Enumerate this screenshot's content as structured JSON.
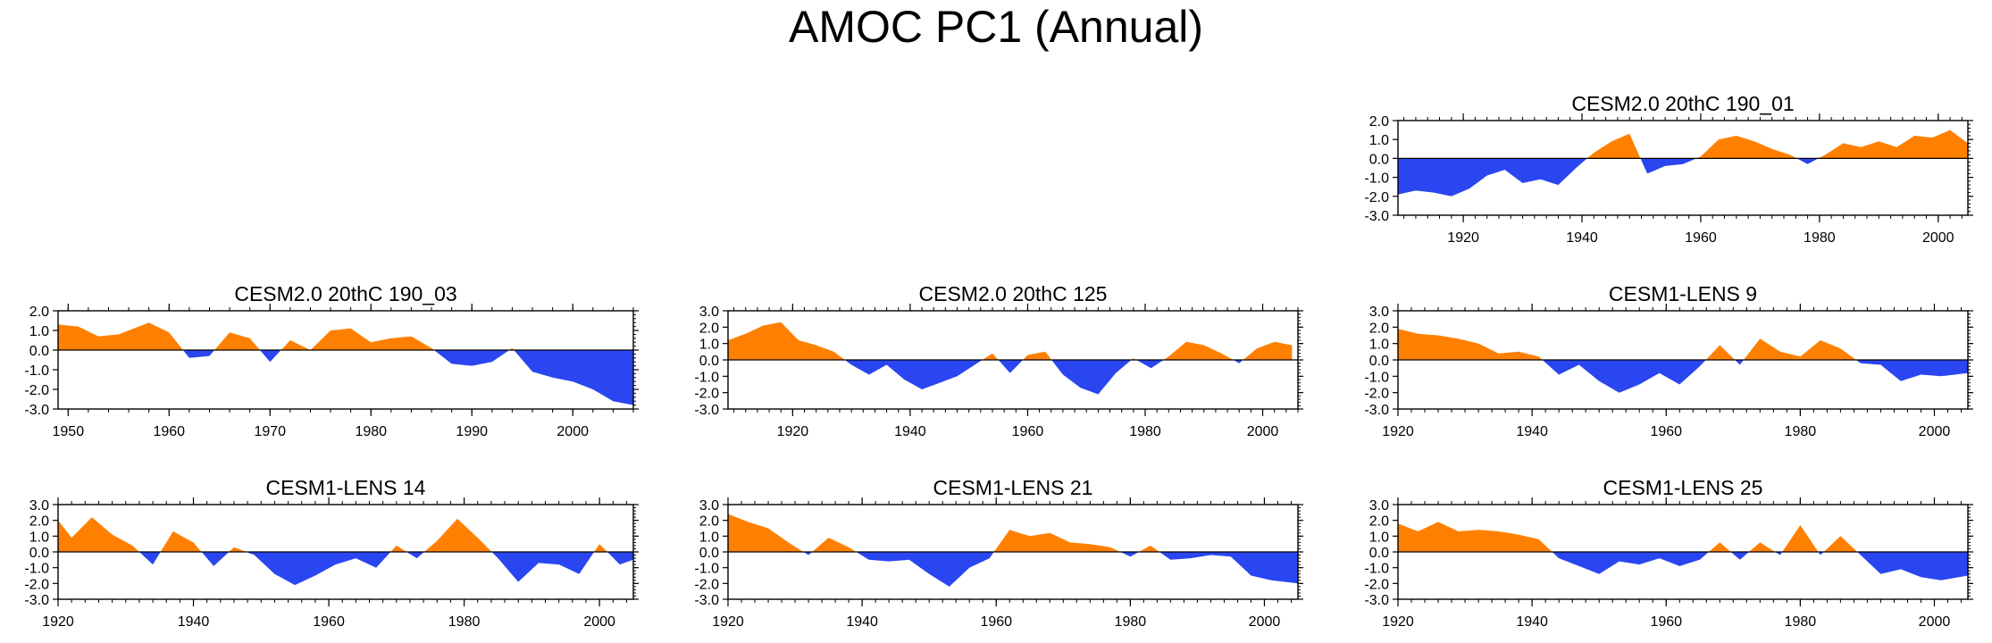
{
  "title": "AMOC PC1 (Annual)",
  "colors": {
    "positive": "#ff8000",
    "negative": "#2a46f0",
    "axis": "#000000"
  },
  "chart_data": [
    {
      "type": "area",
      "title": "CESM2.0 20thC 190_01",
      "x_range": [
        1909,
        2005
      ],
      "ylim": [
        -3,
        2
      ],
      "yticks": [
        2,
        1,
        0,
        -1,
        -2,
        -3
      ],
      "ytick_labels": [
        "2.0",
        "1.0",
        "0.0",
        "-1.0",
        "-2.0",
        "-3.0"
      ],
      "xticks": [
        1920,
        1940,
        1960,
        1980,
        2000
      ],
      "xlabel": "",
      "ylabel": "",
      "x": [
        1909,
        1912,
        1915,
        1918,
        1921,
        1924,
        1927,
        1930,
        1933,
        1936,
        1939,
        1942,
        1945,
        1948,
        1951,
        1954,
        1957,
        1960,
        1963,
        1966,
        1969,
        1972,
        1975,
        1978,
        1981,
        1984,
        1987,
        1990,
        1993,
        1996,
        1999,
        2002,
        2005
      ],
      "y": [
        -1.9,
        -1.7,
        -1.8,
        -2.0,
        -1.6,
        -0.9,
        -0.6,
        -1.3,
        -1.1,
        -1.4,
        -0.5,
        0.3,
        0.9,
        1.3,
        -0.8,
        -0.4,
        -0.3,
        0.1,
        1.0,
        1.2,
        0.9,
        0.5,
        0.2,
        -0.3,
        0.2,
        0.8,
        0.6,
        0.9,
        0.6,
        1.2,
        1.1,
        1.5,
        0.8
      ]
    },
    {
      "type": "area",
      "title": "CESM2.0 20thC 190_03",
      "x_range": [
        1949,
        2006
      ],
      "ylim": [
        -3,
        2
      ],
      "yticks": [
        2,
        1,
        0,
        -1,
        -2,
        -3
      ],
      "ytick_labels": [
        "2.0",
        "1.0",
        "0.0",
        "-1.0",
        "-2.0",
        "-3.0"
      ],
      "xticks": [
        1950,
        1960,
        1970,
        1980,
        1990,
        2000
      ],
      "xlabel": "",
      "ylabel": "",
      "x": [
        1949,
        1951,
        1953,
        1955,
        1957,
        1958,
        1960,
        1962,
        1964,
        1966,
        1968,
        1970,
        1972,
        1974,
        1976,
        1978,
        1980,
        1982,
        1984,
        1986,
        1988,
        1990,
        1992,
        1994,
        1996,
        1998,
        2000,
        2002,
        2004,
        2006
      ],
      "y": [
        1.3,
        1.2,
        0.7,
        0.8,
        1.2,
        1.4,
        0.9,
        -0.4,
        -0.3,
        0.9,
        0.6,
        -0.6,
        0.5,
        0.0,
        1.0,
        1.1,
        0.4,
        0.6,
        0.7,
        0.1,
        -0.7,
        -0.8,
        -0.6,
        0.1,
        -1.1,
        -1.4,
        -1.6,
        -2.0,
        -2.6,
        -2.8
      ]
    },
    {
      "type": "area",
      "title": "CESM2.0 20thC 125",
      "x_range": [
        1909,
        2006
      ],
      "ylim": [
        -3,
        3
      ],
      "yticks": [
        3,
        2,
        1,
        0,
        -1,
        -2,
        -3
      ],
      "ytick_labels": [
        "3.0",
        "2.0",
        "1.0",
        "0.0",
        "-1.0",
        "-2.0",
        "-3.0"
      ],
      "xticks": [
        1920,
        1940,
        1960,
        1980,
        2000
      ],
      "xlabel": "",
      "ylabel": "",
      "x": [
        1909,
        1912,
        1915,
        1918,
        1921,
        1924,
        1927,
        1930,
        1933,
        1936,
        1939,
        1942,
        1945,
        1948,
        1951,
        1954,
        1957,
        1960,
        1963,
        1966,
        1969,
        1972,
        1975,
        1978,
        1981,
        1984,
        1987,
        1990,
        1993,
        1996,
        1999,
        2002,
        2005
      ],
      "y": [
        1.2,
        1.6,
        2.1,
        2.3,
        1.2,
        0.9,
        0.5,
        -0.3,
        -0.9,
        -0.3,
        -1.2,
        -1.8,
        -1.4,
        -1.0,
        -0.3,
        0.4,
        -0.8,
        0.3,
        0.5,
        -0.9,
        -1.7,
        -2.1,
        -0.8,
        0.1,
        -0.5,
        0.2,
        1.1,
        0.9,
        0.4,
        -0.2,
        0.7,
        1.1,
        0.9
      ]
    },
    {
      "type": "area",
      "title": "CESM1-LENS 9",
      "x_range": [
        1920,
        2005
      ],
      "ylim": [
        -3,
        3
      ],
      "yticks": [
        3,
        2,
        1,
        0,
        -1,
        -2,
        -3
      ],
      "ytick_labels": [
        "3.0",
        "2.0",
        "1.0",
        "0.0",
        "-1.0",
        "-2.0",
        "-3.0"
      ],
      "xticks": [
        1920,
        1940,
        1960,
        1980,
        2000
      ],
      "xlabel": "",
      "ylabel": "",
      "x": [
        1920,
        1923,
        1926,
        1929,
        1932,
        1935,
        1938,
        1941,
        1944,
        1947,
        1950,
        1953,
        1956,
        1959,
        1962,
        1965,
        1968,
        1971,
        1974,
        1977,
        1980,
        1983,
        1986,
        1989,
        1992,
        1995,
        1998,
        2001,
        2005
      ],
      "y": [
        1.9,
        1.6,
        1.5,
        1.3,
        1.0,
        0.4,
        0.5,
        0.2,
        -0.9,
        -0.3,
        -1.3,
        -2.0,
        -1.5,
        -0.8,
        -1.5,
        -0.4,
        0.9,
        -0.3,
        1.3,
        0.5,
        0.2,
        1.2,
        0.7,
        -0.2,
        -0.3,
        -1.3,
        -0.9,
        -1.0,
        -0.8
      ]
    },
    {
      "type": "area",
      "title": "CESM1-LENS 14",
      "x_range": [
        1920,
        2005
      ],
      "ylim": [
        -3,
        3
      ],
      "yticks": [
        3,
        2,
        1,
        0,
        -1,
        -2,
        -3
      ],
      "ytick_labels": [
        "3.0",
        "2.0",
        "1.0",
        "0.0",
        "-1.0",
        "-2.0",
        "-3.0"
      ],
      "xticks": [
        1920,
        1940,
        1960,
        1980,
        2000
      ],
      "xlabel": "",
      "ylabel": "",
      "x": [
        1920,
        1922,
        1925,
        1928,
        1931,
        1934,
        1937,
        1940,
        1943,
        1946,
        1949,
        1952,
        1955,
        1958,
        1961,
        1964,
        1967,
        1970,
        1973,
        1976,
        1979,
        1982,
        1985,
        1988,
        1991,
        1994,
        1997,
        2000,
        2003,
        2005
      ],
      "y": [
        2.0,
        0.9,
        2.2,
        1.1,
        0.4,
        -0.8,
        1.3,
        0.6,
        -0.9,
        0.3,
        -0.2,
        -1.4,
        -2.1,
        -1.5,
        -0.8,
        -0.4,
        -1.0,
        0.4,
        -0.4,
        0.7,
        2.1,
        0.9,
        -0.4,
        -1.9,
        -0.7,
        -0.8,
        -1.4,
        0.5,
        -0.8,
        -0.5
      ]
    },
    {
      "type": "area",
      "title": "CESM1-LENS 21",
      "x_range": [
        1920,
        2005
      ],
      "ylim": [
        -3,
        3
      ],
      "yticks": [
        3,
        2,
        1,
        0,
        -1,
        -2,
        -3
      ],
      "ytick_labels": [
        "3.0",
        "2.0",
        "1.0",
        "0.0",
        "-1.0",
        "-2.0",
        "-3.0"
      ],
      "xticks": [
        1920,
        1940,
        1960,
        1980,
        2000
      ],
      "xlabel": "",
      "ylabel": "",
      "x": [
        1920,
        1923,
        1926,
        1929,
        1932,
        1935,
        1938,
        1941,
        1944,
        1947,
        1950,
        1953,
        1956,
        1959,
        1962,
        1965,
        1968,
        1971,
        1974,
        1977,
        1980,
        1983,
        1986,
        1989,
        1992,
        1995,
        1998,
        2001,
        2005
      ],
      "y": [
        2.4,
        1.9,
        1.5,
        0.6,
        -0.2,
        0.9,
        0.3,
        -0.5,
        -0.6,
        -0.5,
        -1.4,
        -2.2,
        -1.0,
        -0.4,
        1.4,
        1.0,
        1.2,
        0.6,
        0.5,
        0.3,
        -0.3,
        0.4,
        -0.5,
        -0.4,
        -0.2,
        -0.3,
        -1.5,
        -1.8,
        -2.0
      ]
    },
    {
      "type": "area",
      "title": "CESM1-LENS 25",
      "x_range": [
        1920,
        2005
      ],
      "ylim": [
        -3,
        3
      ],
      "yticks": [
        3,
        2,
        1,
        0,
        -1,
        -2,
        -3
      ],
      "ytick_labels": [
        "3.0",
        "2.0",
        "1.0",
        "0.0",
        "-1.0",
        "-2.0",
        "-3.0"
      ],
      "xticks": [
        1920,
        1940,
        1960,
        1980,
        2000
      ],
      "xlabel": "",
      "ylabel": "",
      "x": [
        1920,
        1923,
        1926,
        1929,
        1932,
        1935,
        1938,
        1941,
        1944,
        1947,
        1950,
        1953,
        1956,
        1959,
        1962,
        1965,
        1968,
        1971,
        1974,
        1977,
        1980,
        1983,
        1986,
        1989,
        1992,
        1995,
        1998,
        2001,
        2005
      ],
      "y": [
        1.8,
        1.3,
        1.9,
        1.3,
        1.4,
        1.3,
        1.1,
        0.8,
        -0.4,
        -0.9,
        -1.4,
        -0.6,
        -0.8,
        -0.4,
        -0.9,
        -0.5,
        0.6,
        -0.5,
        0.6,
        -0.2,
        1.7,
        -0.2,
        1.0,
        -0.2,
        -1.4,
        -1.1,
        -1.6,
        -1.8,
        -1.5
      ]
    }
  ]
}
